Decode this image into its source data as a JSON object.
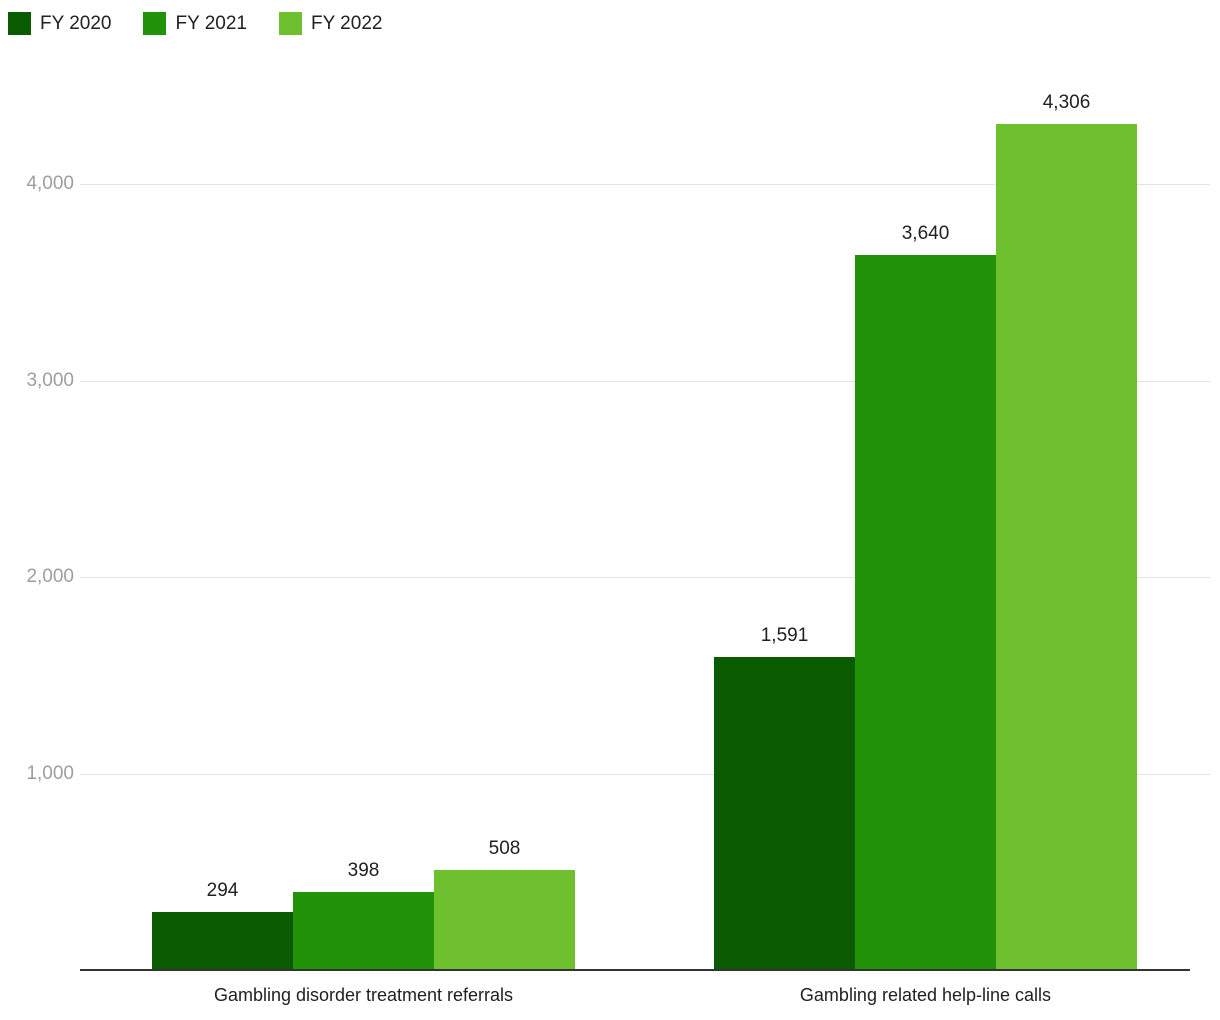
{
  "chart_data": {
    "type": "bar",
    "title": "",
    "categories": [
      "Gambling disorder treatment referrals",
      "Gambling related help-line calls"
    ],
    "series": [
      {
        "name": "FY 2020",
        "color": "#0a5a00",
        "values": [
          294,
          1591
        ]
      },
      {
        "name": "FY 2021",
        "color": "#229209",
        "values": [
          398,
          3640
        ]
      },
      {
        "name": "FY 2022",
        "color": "#6fc02f",
        "values": [
          508,
          4306
        ]
      }
    ],
    "value_labels": [
      [
        "294",
        "1,591"
      ],
      [
        "398",
        "3,640"
      ],
      [
        "508",
        "4,306"
      ]
    ],
    "y_ticks": [
      1000,
      2000,
      3000,
      4000
    ],
    "y_tick_labels": [
      "1,000",
      "2,000",
      "3,000",
      "4,000"
    ],
    "ylim": [
      0,
      4430
    ],
    "grid": true,
    "legend_position": "top-left",
    "colors": {
      "axis": "#333333",
      "gridline": "#e3e3e3",
      "tick_text": "#9e9e9e",
      "label_text": "#212121"
    }
  }
}
